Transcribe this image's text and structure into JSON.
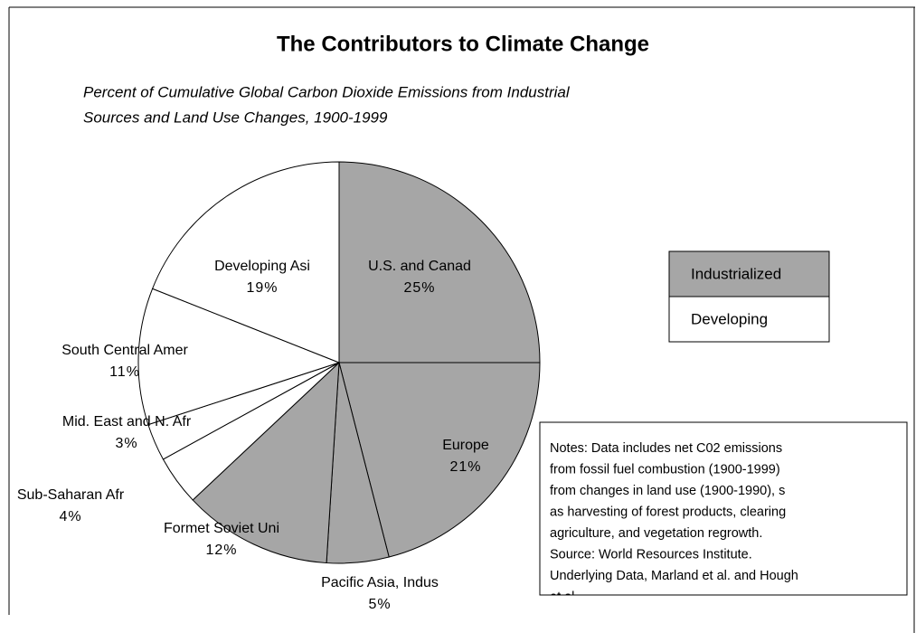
{
  "chart_data": {
    "type": "pie",
    "title": "The Contributors to Climate Change",
    "subtitle": [
      "Percent of Cumulative Global Carbon Dioxide Emissions from Industrial",
      "Sources and Land Use Changes, 1900-1999"
    ],
    "categories": [
      "U.S. and Canad",
      "Europe",
      "Pacific  Asia, Indus",
      "Formet Soviet Uni",
      "Sub-Saharan  Afr",
      "Mid. East and N. Afr",
      "South Central Amer",
      "Developing Asi"
    ],
    "values": [
      25,
      21,
      5,
      12,
      4,
      3,
      11,
      19
    ],
    "value_labels": [
      "25%",
      "21%",
      "5%",
      "12%",
      "4%",
      "3%",
      "11%",
      "19%"
    ],
    "colors": [
      "#a6a6a6",
      "#a6a6a6",
      "#a6a6a6",
      "#a6a6a6",
      "#ffffff",
      "#ffffff",
      "#ffffff",
      "#ffffff"
    ],
    "legend": [
      {
        "name": "Industrialized",
        "color": "#a6a6a6"
      },
      {
        "name": "Developing",
        "color": "#ffffff"
      }
    ],
    "notes": [
      "Notes: Data includes net C02 emissions",
      "from fossil fuel combustion (1900-1999)",
      "from changes in land use (1900-1990), s",
      "as harvesting of forest products, clearing",
      "agriculture, and vegetation regrowth.",
      "Source: World Resources Institute.",
      "Underlying Data, Marland et al. and Hough",
      "et al."
    ]
  }
}
